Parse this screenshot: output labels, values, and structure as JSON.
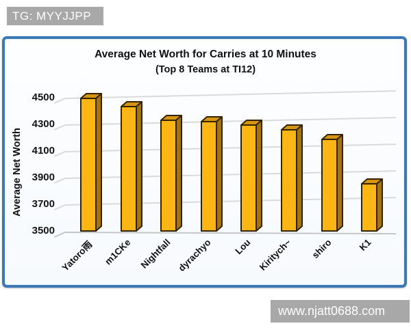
{
  "badges": {
    "tg": {
      "label": "TG: MYYJJPP"
    },
    "watermark": {
      "label": "www.njatt0688.com"
    }
  },
  "chart_data": {
    "type": "bar",
    "title": "Average Net Worth for Carries at 10 Minutes",
    "subtitle": "(Top 8 Teams at TI12)",
    "xlabel": "",
    "ylabel": "Average Net Worth",
    "categories": [
      "Yatoro雨",
      "m1CKe",
      "Nightfall",
      "dyrachyo",
      "Lou",
      "Kiritych~",
      "shiro",
      "K1"
    ],
    "values": [
      4495,
      4435,
      4330,
      4320,
      4295,
      4260,
      4185,
      3855
    ],
    "yticks": [
      3500,
      3700,
      3900,
      4100,
      4300,
      4500
    ],
    "ylim": [
      3500,
      4560
    ],
    "grid": true,
    "legend": false,
    "style": "hand-drawn 3D bars",
    "colors": {
      "bar_front": "#FBB615",
      "bar_top": "#D49612",
      "bar_side": "#A3740F",
      "bar_outline": "#332200",
      "gridline": "#dadada",
      "axis_floor": "#c6c6c6",
      "frame_border": "#3c78b6",
      "frame_bg": "#fbfdff",
      "badge_bg": "#a8a8a8",
      "badge_text": "#ffffff",
      "text": "#101010"
    }
  }
}
